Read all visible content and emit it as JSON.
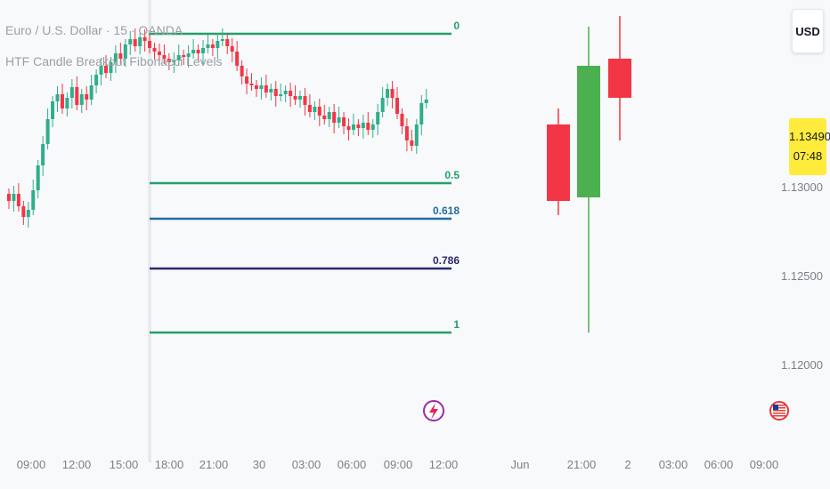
{
  "header": {
    "symbol_line": "Euro / U.S. Dollar · 15 · OANDA",
    "indicator_line": "HTF Candle Breakout Fibonacci Levels"
  },
  "currency": "USD",
  "price_badge": {
    "price": "1.13490",
    "countdown": "07:48"
  },
  "colors": {
    "up": "#2fae8c",
    "down": "#f23645",
    "htf_up": "#4caf50",
    "htf_down": "#f23645",
    "fib_0": "#22a06b",
    "fib_05": "#22a06b",
    "fib_0618": "#1e6fa1",
    "fib_0786": "#2a2a6e",
    "fib_1": "#22a06b",
    "badge": "#ffeb3b"
  },
  "icons": {
    "bolt": "lightning-icon",
    "flag": "us-flag-icon"
  },
  "chart_data": {
    "type": "candlestick",
    "title": "Euro / U.S. Dollar · 15 · OANDA",
    "y_axis": {
      "min": 1.118,
      "max": 1.1405,
      "ticks": [
        "1.12000",
        "1.12500",
        "1.13000"
      ],
      "tick_values": [
        1.12,
        1.125,
        1.13
      ]
    },
    "x_ticks": [
      "09:00",
      "12:00",
      "15:00",
      "18:00",
      "21:00",
      "30",
      "03:00",
      "06:00",
      "09:00",
      "12:00",
      "Jun",
      "21:00",
      "2",
      "03:00",
      "06:00",
      "09:00"
    ],
    "fib_levels": [
      {
        "label": "0",
        "price": 1.1386
      },
      {
        "label": "0.5",
        "price": 1.1302
      },
      {
        "label": "0.618",
        "price": 1.1282
      },
      {
        "label": "0.786",
        "price": 1.1254
      },
      {
        "label": "1",
        "price": 1.1218
      }
    ],
    "intraday_closes": [
      1.1292,
      1.1296,
      1.1289,
      1.1283,
      1.1287,
      1.1298,
      1.1312,
      1.1324,
      1.1338,
      1.1348,
      1.1352,
      1.1344,
      1.135,
      1.1356,
      1.1346,
      1.1352,
      1.1349,
      1.1357,
      1.1363,
      1.1368,
      1.1364,
      1.137,
      1.1375,
      1.1372,
      1.138,
      1.1383,
      1.1379,
      1.1384,
      1.1382,
      1.1378,
      1.1376,
      1.1374,
      1.1372,
      1.137,
      1.1371,
      1.1374,
      1.1373,
      1.1375,
      1.1377,
      1.1375,
      1.1378,
      1.138,
      1.1378,
      1.1382,
      1.1383,
      1.1379,
      1.1376,
      1.1368,
      1.1362,
      1.1358,
      1.1357,
      1.1355,
      1.1357,
      1.1353,
      1.1355,
      1.1351,
      1.1352,
      1.1354,
      1.1351,
      1.1349,
      1.1351,
      1.1346,
      1.1342,
      1.1345,
      1.134,
      1.1338,
      1.1342,
      1.1336,
      1.1339,
      1.1334,
      1.1332,
      1.1335,
      1.1333,
      1.1336,
      1.1332,
      1.1335,
      1.1342,
      1.135,
      1.1355,
      1.135,
      1.1341,
      1.1334,
      1.1326,
      1.1323,
      1.1335,
      1.1347,
      1.1349
    ],
    "htf_candles": [
      {
        "open": 1.1335,
        "high": 1.1344,
        "low": 1.1284,
        "close": 1.1292
      },
      {
        "open": 1.1294,
        "high": 1.139,
        "low": 1.1218,
        "close": 1.1368
      },
      {
        "open": 1.1372,
        "high": 1.1396,
        "low": 1.1326,
        "close": 1.135
      }
    ],
    "last_price": 1.1349
  }
}
